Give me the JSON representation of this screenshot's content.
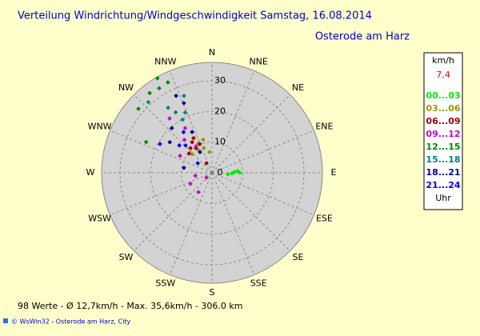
{
  "chart_data": {
    "type": "polar_scatter",
    "title": "Verteilung Windrichtung/Windgeschwindigkeit  Samstag, 16.08.2014",
    "subtitle": "Osterode am Harz",
    "directions": [
      "N",
      "NNE",
      "NE",
      "ENE",
      "E",
      "ESE",
      "SE",
      "SSE",
      "S",
      "SSW",
      "SW",
      "WSW",
      "W",
      "WNW",
      "NW",
      "NNW"
    ],
    "xlim": [
      0,
      360
    ],
    "rlim": [
      0,
      36
    ],
    "rticks": [
      0,
      10,
      20,
      30
    ],
    "legend_title": "km/h",
    "legend_value": "7,4",
    "legend_footer": "Uhr",
    "series": [
      {
        "name": "00...03",
        "color": "#00ee00",
        "x": [
          92,
          90,
          88,
          86,
          95
        ],
        "values": [
          6.5,
          9.1,
          7.3,
          8.4,
          5.2
        ]
      },
      {
        "name": "03...06",
        "color": "#999900",
        "x": [
          342,
          353,
          329,
          313,
          335,
          345
        ],
        "values": [
          8.5,
          6.8,
          8.6,
          8.9,
          10.5,
          11.2
        ]
      },
      {
        "name": "06...09",
        "color": "#990000",
        "x": [
          327,
          327,
          337,
          319,
          330,
          310,
          332
        ],
        "values": [
          11.9,
          9.6,
          10.2,
          10.7,
          3.6,
          9.8,
          12.8
        ]
      },
      {
        "name": "09...12",
        "color": "#cc00cc",
        "x": [
          322,
          320,
          329,
          298,
          329,
          243,
          215,
          229,
          260
        ],
        "values": [
          22.5,
          14,
          10.1,
          11.8,
          17,
          7.9,
          7.7,
          2.4,
          5.5
        ]
      },
      {
        "name": "12...15",
        "color": "#008800",
        "x": [
          330,
          322,
          311,
          295,
          334,
          328
        ],
        "values": [
          35.6,
          33,
          31.8,
          23.7,
          32.8,
          32.5
        ]
      },
      {
        "name": "15...18",
        "color": "#008080",
        "x": [
          318,
          326,
          329,
          340,
          331,
          336
        ],
        "values": [
          31,
          25.6,
          23,
          26.7,
          19.8,
          21.5
        ]
      },
      {
        "name": "18...21",
        "color": "#000099",
        "x": [
          335,
          318,
          306,
          334,
          280,
          330,
          338
        ],
        "values": [
          27.7,
          19.6,
          17,
          14.8,
          9.3,
          7.8,
          24.5
        ]
      },
      {
        "name": "21...24",
        "color": "#0000ff",
        "x": [
          310,
          299,
          304,
          325,
          316
        ],
        "values": [
          13.9,
          19.4,
          5.6,
          16.2,
          12.4
        ]
      }
    ],
    "summary": "98 Werte  -  Ø 12,7km/h  -  Max. 35,6km/h  -  306.0 km",
    "footer": "© WsWin32  -  Osterode am Harz, City"
  }
}
